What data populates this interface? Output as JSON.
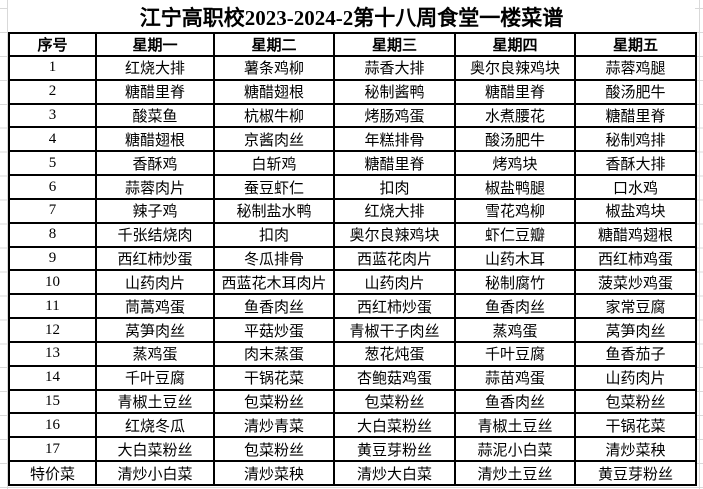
{
  "title": "江宁高职校2023-2024-2第十八周食堂一楼菜谱",
  "table": {
    "headers": [
      "序号",
      "星期一",
      "星期二",
      "星期三",
      "星期四",
      "星期五"
    ],
    "rows": [
      [
        "1",
        "红烧大排",
        "薯条鸡柳",
        "蒜香大排",
        "奥尔良辣鸡块",
        "蒜蓉鸡腿"
      ],
      [
        "2",
        "糖醋里脊",
        "糖醋翅根",
        "秘制酱鸭",
        "糖醋里脊",
        "酸汤肥牛"
      ],
      [
        "3",
        "酸菜鱼",
        "杭椒牛柳",
        "烤肠鸡蛋",
        "水煮腰花",
        "糖醋里脊"
      ],
      [
        "4",
        "糖醋翅根",
        "京酱肉丝",
        "年糕排骨",
        "酸汤肥牛",
        "秘制鸡排"
      ],
      [
        "5",
        "香酥鸡",
        "白斩鸡",
        "糖醋里脊",
        "烤鸡块",
        "香酥大排"
      ],
      [
        "6",
        "蒜蓉肉片",
        "蚕豆虾仁",
        "扣肉",
        "椒盐鸭腿",
        "口水鸡"
      ],
      [
        "7",
        "辣子鸡",
        "秘制盐水鸭",
        "红烧大排",
        "雪花鸡柳",
        "椒盐鸡块"
      ],
      [
        "8",
        "千张结烧肉",
        "扣肉",
        "奥尔良辣鸡块",
        "虾仁豆瓣",
        "糖醋鸡翅根"
      ],
      [
        "9",
        "西红柿炒蛋",
        "冬瓜排骨",
        "西蓝花肉片",
        "山药木耳",
        "西红柿鸡蛋"
      ],
      [
        "10",
        "山药肉片",
        "西蓝花木耳肉片",
        "山药肉片",
        "秘制腐竹",
        "菠菜炒鸡蛋"
      ],
      [
        "11",
        "茼蒿鸡蛋",
        "鱼香肉丝",
        "西红柿炒蛋",
        "鱼香肉丝",
        "家常豆腐"
      ],
      [
        "12",
        "莴笋肉丝",
        "平菇炒蛋",
        "青椒干子肉丝",
        "蒸鸡蛋",
        "莴笋肉丝"
      ],
      [
        "13",
        "蒸鸡蛋",
        "肉末蒸蛋",
        "葱花炖蛋",
        "千叶豆腐",
        "鱼香茄子"
      ],
      [
        "14",
        "千叶豆腐",
        "干锅花菜",
        "杏鲍菇鸡蛋",
        "蒜苗鸡蛋",
        "山药肉片"
      ],
      [
        "15",
        "青椒土豆丝",
        "包菜粉丝",
        "包菜粉丝",
        "鱼香肉丝",
        "包菜粉丝"
      ],
      [
        "16",
        "红烧冬瓜",
        "清炒青菜",
        "大白菜粉丝",
        "青椒土豆丝",
        "干锅花菜"
      ],
      [
        "17",
        "大白菜粉丝",
        "包菜粉丝",
        "黄豆芽粉丝",
        "蒜泥小白菜",
        "清炒菜秧"
      ],
      [
        "特价菜",
        "清炒小白菜",
        "清炒菜秧",
        "清炒大白菜",
        "清炒土豆丝",
        "黄豆芽粉丝"
      ]
    ]
  }
}
